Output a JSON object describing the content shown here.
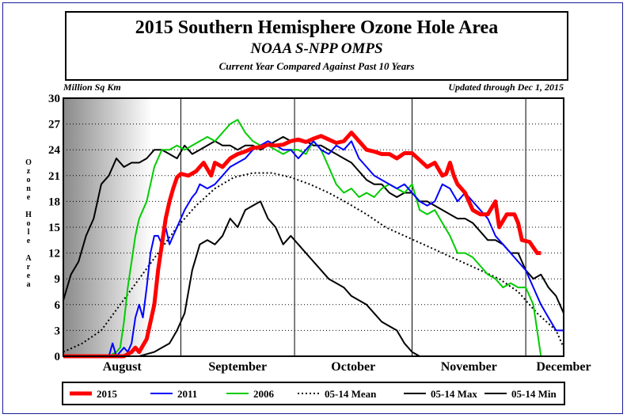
{
  "header": {
    "title": "2015 Southern Hemisphere Ozone Hole Area",
    "subtitle": "NOAA S-NPP OMPS",
    "subtitle2": "Current Year Compared Against Past 10 Years"
  },
  "chart_data": {
    "type": "line",
    "y_unit_label": "Million Sq Km",
    "ylabel": "Ozone Hole Area",
    "updated_note": "Updated through Dec 1, 2015",
    "ylim": [
      0,
      30
    ],
    "yticks": [
      0,
      3,
      6,
      9,
      12,
      15,
      18,
      21,
      24,
      27,
      30
    ],
    "xlim": [
      0,
      132
    ],
    "month_boundaries": [
      0,
      31,
      61,
      92,
      122
    ],
    "month_labels": [
      {
        "label": "August",
        "x": 15.5
      },
      {
        "label": "September",
        "x": 46
      },
      {
        "label": "October",
        "x": 76.5
      },
      {
        "label": "November",
        "x": 107
      },
      {
        "label": "December",
        "x": 132
      }
    ],
    "grid": true,
    "legend_position": "bottom",
    "series": [
      {
        "name": "2015",
        "color": "#ff0000",
        "style": "solid",
        "width": 5,
        "x": [
          0,
          16,
          18,
          19,
          20,
          22,
          24,
          25,
          26,
          27,
          28,
          29,
          30,
          31,
          33,
          35,
          37,
          39,
          40,
          42,
          44,
          46,
          48,
          50,
          52,
          54,
          56,
          58,
          60,
          62,
          64,
          66,
          68,
          70,
          72,
          74,
          76,
          78,
          80,
          82,
          84,
          86,
          88,
          90,
          92,
          94,
          96,
          98,
          100,
          101,
          102,
          103,
          104,
          106,
          108,
          110,
          112,
          114,
          115,
          117,
          119,
          120,
          121,
          123,
          125,
          126
        ],
        "y": [
          0,
          0,
          0.5,
          1,
          0.5,
          2,
          6,
          10,
          13,
          16,
          18,
          19.5,
          20.8,
          21.2,
          21,
          21.5,
          22.5,
          21,
          22.5,
          22,
          23,
          23.5,
          23.8,
          24.2,
          24.3,
          24.6,
          24.5,
          24.6,
          25,
          25.2,
          24.9,
          25.3,
          25.6,
          25.2,
          24.8,
          25,
          26,
          25,
          24,
          23.8,
          23.5,
          23.5,
          23,
          23.6,
          23.6,
          22.8,
          22,
          22.5,
          21,
          21.2,
          22.5,
          21,
          20,
          19,
          17,
          16.5,
          16.5,
          18,
          15,
          16.5,
          16.5,
          15.5,
          13.5,
          13.3,
          12,
          12
        ]
      },
      {
        "name": "2011",
        "color": "#0000ff",
        "style": "solid",
        "width": 2,
        "x": [
          0,
          12,
          13,
          14,
          15,
          16,
          17,
          18,
          19,
          20,
          21,
          22,
          23,
          24,
          25,
          26,
          27,
          28,
          29,
          30,
          32,
          34,
          35,
          36,
          38,
          40,
          42,
          44,
          46,
          48,
          50,
          52,
          54,
          56,
          58,
          60,
          62,
          64,
          66,
          68,
          70,
          72,
          74,
          76,
          78,
          80,
          82,
          84,
          86,
          88,
          90,
          92,
          94,
          96,
          98,
          100,
          102,
          104,
          106,
          108,
          110,
          112,
          114,
          116,
          118,
          120,
          122,
          124,
          126,
          128,
          130,
          132
        ],
        "y": [
          0,
          0,
          1.5,
          0,
          0.5,
          1,
          0.5,
          1.5,
          4.5,
          6,
          4.5,
          8,
          12,
          14,
          14,
          13,
          15,
          13,
          14,
          15,
          17,
          18.5,
          19,
          20,
          19.5,
          20,
          21,
          22,
          22.5,
          23,
          24,
          24.5,
          25,
          24.5,
          24,
          24,
          23,
          24,
          25,
          24,
          23.5,
          24.5,
          24,
          25,
          23,
          22,
          21,
          20.5,
          20,
          19.5,
          20,
          19,
          18,
          17.5,
          18,
          20,
          19.5,
          18,
          19,
          18,
          17,
          16,
          14,
          13,
          12,
          11,
          10,
          8,
          6,
          4.5,
          3,
          3
        ]
      },
      {
        "name": "2006",
        "color": "#00cc00",
        "style": "solid",
        "width": 2,
        "x": [
          0,
          12,
          14,
          15,
          16,
          17,
          18,
          19,
          20,
          21,
          22,
          23,
          24,
          25,
          26,
          28,
          30,
          32,
          34,
          36,
          38,
          40,
          42,
          44,
          46,
          48,
          50,
          52,
          54,
          56,
          58,
          60,
          62,
          64,
          66,
          68,
          70,
          72,
          74,
          76,
          78,
          80,
          82,
          84,
          86,
          88,
          90,
          92,
          94,
          96,
          98,
          100,
          102,
          104,
          106,
          108,
          110,
          112,
          114,
          116,
          118,
          120,
          122,
          124,
          126,
          128,
          130,
          132
        ],
        "y": [
          0,
          0,
          0.5,
          1,
          4,
          8,
          11,
          14,
          16,
          17,
          18,
          20,
          22,
          23,
          24,
          24,
          24.5,
          24,
          24.5,
          25,
          25.5,
          25,
          26,
          27,
          27.5,
          26,
          25,
          24.5,
          24.5,
          24,
          23.5,
          24,
          24,
          23.5,
          25,
          24,
          22,
          20,
          19,
          19.5,
          18.5,
          19,
          18.5,
          19.5,
          20,
          19.5,
          19,
          20,
          17,
          16.5,
          17,
          15.5,
          14,
          12,
          12,
          11.5,
          10.5,
          9.5,
          9,
          8,
          8.5,
          8,
          8,
          6,
          0,
          0,
          0,
          0
        ]
      },
      {
        "name": "05-14 Mean",
        "color": "#000000",
        "style": "dotted",
        "width": 2,
        "x": [
          0,
          5,
          10,
          15,
          20,
          25,
          30,
          35,
          40,
          45,
          50,
          55,
          60,
          65,
          70,
          75,
          80,
          85,
          90,
          95,
          100,
          105,
          110,
          115,
          120,
          125,
          130,
          132
        ],
        "y": [
          0.5,
          1.5,
          3,
          6,
          9,
          12,
          15,
          17.5,
          19.5,
          20.8,
          21.3,
          21.3,
          20.8,
          20,
          19,
          17.8,
          16.5,
          15,
          14,
          13,
          12,
          11,
          10,
          9,
          7.5,
          5,
          3,
          1
        ]
      },
      {
        "name": "05-14 Max",
        "color": "#000000",
        "style": "solid",
        "width": 2,
        "x": [
          0,
          2,
          4,
          6,
          8,
          10,
          12,
          14,
          16,
          18,
          20,
          22,
          24,
          26,
          28,
          30,
          32,
          34,
          36,
          38,
          40,
          42,
          44,
          46,
          48,
          50,
          52,
          54,
          56,
          58,
          60,
          62,
          64,
          66,
          68,
          70,
          72,
          74,
          76,
          78,
          80,
          82,
          84,
          86,
          88,
          90,
          92,
          94,
          96,
          98,
          100,
          102,
          104,
          106,
          108,
          110,
          112,
          114,
          116,
          118,
          120,
          122,
          124,
          126,
          128,
          130,
          132
        ],
        "y": [
          6.5,
          9.5,
          11,
          14,
          16,
          20,
          21,
          23,
          22,
          22.5,
          22.5,
          23,
          24,
          24,
          23.5,
          23,
          24.5,
          23.5,
          24,
          24.5,
          25,
          24.5,
          24.5,
          24,
          24.5,
          24.5,
          24,
          24.5,
          25,
          25.5,
          25,
          25,
          25,
          24.5,
          24.5,
          24,
          23.5,
          23,
          22.5,
          21.5,
          20.5,
          20,
          20,
          19,
          18.5,
          19,
          19,
          18,
          18,
          17.5,
          17,
          16.5,
          16,
          16,
          15.5,
          14.5,
          13.5,
          13.5,
          13,
          12,
          12,
          10,
          9,
          9.5,
          8,
          7,
          5
        ]
      },
      {
        "name": "05-14 Min",
        "color": "#000000",
        "style": "solid",
        "width": 2,
        "x": [
          0,
          10,
          20,
          24,
          26,
          28,
          30,
          32,
          34,
          36,
          38,
          40,
          42,
          44,
          46,
          48,
          50,
          52,
          54,
          56,
          58,
          60,
          62,
          64,
          66,
          68,
          70,
          72,
          74,
          76,
          78,
          80,
          82,
          84,
          86,
          88,
          90,
          92,
          94,
          96,
          98,
          100
        ],
        "y": [
          0,
          0,
          0,
          0.5,
          1,
          1.5,
          3,
          5,
          10,
          13,
          13.5,
          13,
          14,
          16,
          15,
          17,
          17.5,
          18,
          16,
          15,
          13,
          14,
          13,
          12,
          11,
          10,
          9,
          8.5,
          8,
          7,
          6.5,
          6,
          5,
          4,
          3.5,
          3,
          1.5,
          0.5,
          0,
          0,
          0,
          0
        ]
      }
    ]
  }
}
